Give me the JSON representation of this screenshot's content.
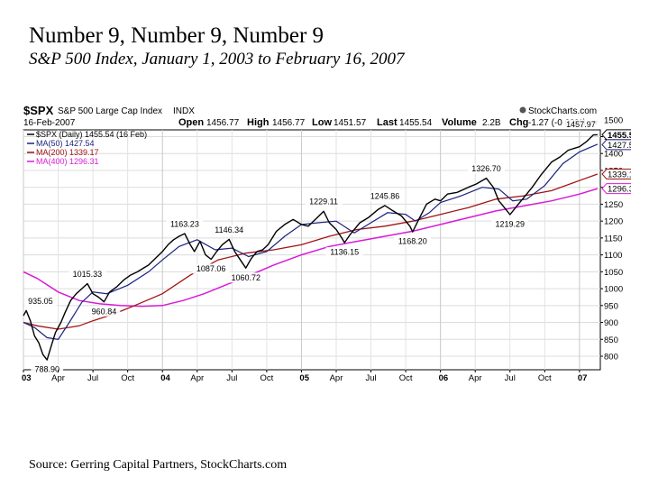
{
  "slide": {
    "title": "Number 9, Number 9, Number 9",
    "subtitle": "S&P 500 Index, January 1, 2003 to February 16, 2007",
    "source": "Source: Gerring Capital Partners, StockCharts.com"
  },
  "chart_data": {
    "type": "line",
    "symbol": "$SPX",
    "name": "S&P 500 Large Cap Index",
    "exchange": "INDX",
    "date": "16-Feb-2007",
    "brand": "StockCharts.com",
    "quote": {
      "open_label": "Open",
      "open": "1456.77",
      "high_label": "High",
      "high": "1456.77",
      "low_label": "Low",
      "low": "1451.57",
      "last_label": "Last",
      "last": "1455.54",
      "volume_label": "Volume",
      "volume": "2.2B",
      "chg_label": "Chg",
      "chg": "-1.27 (-0.09%)"
    },
    "legend": [
      {
        "label": "$SPX (Daily) 1455.54 (16 Feb)",
        "color": "#000000"
      },
      {
        "label": "MA(50) 1427.54",
        "color": "#1a237e"
      },
      {
        "label": "MA(200) 1339.17",
        "color": "#a01414"
      },
      {
        "label": "MA(400) 1296.31",
        "color": "#d81bd8"
      }
    ],
    "ylim": [
      760,
      1470
    ],
    "xlim": [
      2003.0,
      2007.15
    ],
    "y_ticks": [
      800,
      850,
      900,
      950,
      1000,
      1050,
      1100,
      1150,
      1200,
      1250,
      1300,
      1350,
      1400,
      1450,
      1500
    ],
    "x_ticks": [
      {
        "t": 2003.0,
        "label": "03",
        "bold": true
      },
      {
        "t": 2003.25,
        "label": "Apr"
      },
      {
        "t": 2003.5,
        "label": "Jul"
      },
      {
        "t": 2003.75,
        "label": "Oct"
      },
      {
        "t": 2004.0,
        "label": "04",
        "bold": true
      },
      {
        "t": 2004.25,
        "label": "Apr"
      },
      {
        "t": 2004.5,
        "label": "Jul"
      },
      {
        "t": 2004.75,
        "label": "Oct"
      },
      {
        "t": 2005.0,
        "label": "05",
        "bold": true
      },
      {
        "t": 2005.25,
        "label": "Apr"
      },
      {
        "t": 2005.5,
        "label": "Jul"
      },
      {
        "t": 2005.75,
        "label": "Oct"
      },
      {
        "t": 2006.0,
        "label": "06",
        "bold": true
      },
      {
        "t": 2006.25,
        "label": "Apr"
      },
      {
        "t": 2006.5,
        "label": "Jul"
      },
      {
        "t": 2006.75,
        "label": "Oct"
      },
      {
        "t": 2007.0,
        "label": "07",
        "bold": true
      }
    ],
    "price_series": [
      [
        2003.0,
        920
      ],
      [
        2003.02,
        935
      ],
      [
        2003.05,
        905
      ],
      [
        2003.08,
        860
      ],
      [
        2003.11,
        840
      ],
      [
        2003.14,
        805
      ],
      [
        2003.17,
        789
      ],
      [
        2003.2,
        830
      ],
      [
        2003.23,
        870
      ],
      [
        2003.27,
        900
      ],
      [
        2003.3,
        930
      ],
      [
        2003.34,
        965
      ],
      [
        2003.38,
        985
      ],
      [
        2003.42,
        1000
      ],
      [
        2003.46,
        1015
      ],
      [
        2003.5,
        985
      ],
      [
        2003.54,
        975
      ],
      [
        2003.58,
        961
      ],
      [
        2003.62,
        990
      ],
      [
        2003.67,
        1005
      ],
      [
        2003.72,
        1025
      ],
      [
        2003.77,
        1040
      ],
      [
        2003.82,
        1050
      ],
      [
        2003.86,
        1060
      ],
      [
        2003.9,
        1070
      ],
      [
        2003.95,
        1090
      ],
      [
        2004.0,
        1110
      ],
      [
        2004.04,
        1130
      ],
      [
        2004.08,
        1145
      ],
      [
        2004.12,
        1155
      ],
      [
        2004.16,
        1163
      ],
      [
        2004.2,
        1130
      ],
      [
        2004.23,
        1110
      ],
      [
        2004.27,
        1140
      ],
      [
        2004.31,
        1100
      ],
      [
        2004.35,
        1087
      ],
      [
        2004.39,
        1110
      ],
      [
        2004.43,
        1130
      ],
      [
        2004.48,
        1146
      ],
      [
        2004.52,
        1110
      ],
      [
        2004.56,
        1085
      ],
      [
        2004.6,
        1061
      ],
      [
        2004.64,
        1090
      ],
      [
        2004.68,
        1110
      ],
      [
        2004.72,
        1115
      ],
      [
        2004.76,
        1130
      ],
      [
        2004.82,
        1170
      ],
      [
        2004.88,
        1190
      ],
      [
        2004.94,
        1205
      ],
      [
        2005.0,
        1190
      ],
      [
        2005.05,
        1185
      ],
      [
        2005.1,
        1205
      ],
      [
        2005.16,
        1229
      ],
      [
        2005.2,
        1195
      ],
      [
        2005.25,
        1175
      ],
      [
        2005.29,
        1150
      ],
      [
        2005.31,
        1136
      ],
      [
        2005.35,
        1160
      ],
      [
        2005.42,
        1195
      ],
      [
        2005.48,
        1210
      ],
      [
        2005.55,
        1234
      ],
      [
        2005.6,
        1246
      ],
      [
        2005.66,
        1230
      ],
      [
        2005.72,
        1215
      ],
      [
        2005.78,
        1185
      ],
      [
        2005.8,
        1168
      ],
      [
        2005.85,
        1210
      ],
      [
        2005.9,
        1250
      ],
      [
        2005.96,
        1265
      ],
      [
        2006.0,
        1260
      ],
      [
        2006.05,
        1280
      ],
      [
        2006.12,
        1285
      ],
      [
        2006.2,
        1300
      ],
      [
        2006.26,
        1310
      ],
      [
        2006.33,
        1327
      ],
      [
        2006.38,
        1300
      ],
      [
        2006.42,
        1260
      ],
      [
        2006.46,
        1240
      ],
      [
        2006.5,
        1219
      ],
      [
        2006.55,
        1245
      ],
      [
        2006.6,
        1270
      ],
      [
        2006.66,
        1300
      ],
      [
        2006.72,
        1335
      ],
      [
        2006.8,
        1375
      ],
      [
        2006.86,
        1390
      ],
      [
        2006.92,
        1410
      ],
      [
        2007.0,
        1420
      ],
      [
        2007.05,
        1435
      ],
      [
        2007.1,
        1455
      ],
      [
        2007.13,
        1455.5
      ]
    ],
    "ma50": [
      [
        2003.0,
        900
      ],
      [
        2003.08,
        885
      ],
      [
        2003.17,
        855
      ],
      [
        2003.25,
        850
      ],
      [
        2003.33,
        900
      ],
      [
        2003.42,
        960
      ],
      [
        2003.5,
        990
      ],
      [
        2003.6,
        985
      ],
      [
        2003.75,
        1010
      ],
      [
        2003.9,
        1050
      ],
      [
        2004.0,
        1085
      ],
      [
        2004.12,
        1125
      ],
      [
        2004.25,
        1145
      ],
      [
        2004.38,
        1115
      ],
      [
        2004.5,
        1120
      ],
      [
        2004.62,
        1095
      ],
      [
        2004.75,
        1110
      ],
      [
        2004.88,
        1155
      ],
      [
        2005.0,
        1190
      ],
      [
        2005.12,
        1195
      ],
      [
        2005.25,
        1200
      ],
      [
        2005.38,
        1165
      ],
      [
        2005.5,
        1195
      ],
      [
        2005.62,
        1225
      ],
      [
        2005.75,
        1220
      ],
      [
        2005.82,
        1200
      ],
      [
        2005.92,
        1225
      ],
      [
        2006.0,
        1255
      ],
      [
        2006.15,
        1275
      ],
      [
        2006.3,
        1300
      ],
      [
        2006.42,
        1295
      ],
      [
        2006.52,
        1260
      ],
      [
        2006.62,
        1265
      ],
      [
        2006.75,
        1305
      ],
      [
        2006.88,
        1370
      ],
      [
        2007.0,
        1405
      ],
      [
        2007.13,
        1427.5
      ]
    ],
    "ma200": [
      [
        2003.0,
        900
      ],
      [
        2003.1,
        890
      ],
      [
        2003.25,
        880
      ],
      [
        2003.4,
        890
      ],
      [
        2003.5,
        905
      ],
      [
        2003.65,
        925
      ],
      [
        2003.8,
        950
      ],
      [
        2004.0,
        985
      ],
      [
        2004.2,
        1040
      ],
      [
        2004.4,
        1085
      ],
      [
        2004.6,
        1105
      ],
      [
        2004.8,
        1115
      ],
      [
        2005.0,
        1130
      ],
      [
        2005.2,
        1155
      ],
      [
        2005.4,
        1175
      ],
      [
        2005.6,
        1185
      ],
      [
        2005.8,
        1200
      ],
      [
        2006.0,
        1220
      ],
      [
        2006.2,
        1240
      ],
      [
        2006.4,
        1265
      ],
      [
        2006.6,
        1275
      ],
      [
        2006.8,
        1290
      ],
      [
        2007.0,
        1320
      ],
      [
        2007.13,
        1339.2
      ]
    ],
    "ma400": [
      [
        2003.0,
        1050
      ],
      [
        2003.1,
        1030
      ],
      [
        2003.25,
        990
      ],
      [
        2003.4,
        965
      ],
      [
        2003.55,
        955
      ],
      [
        2003.7,
        950
      ],
      [
        2003.85,
        948
      ],
      [
        2004.0,
        950
      ],
      [
        2004.15,
        965
      ],
      [
        2004.3,
        985
      ],
      [
        2004.45,
        1010
      ],
      [
        2004.6,
        1035
      ],
      [
        2004.8,
        1070
      ],
      [
        2005.0,
        1100
      ],
      [
        2005.2,
        1125
      ],
      [
        2005.4,
        1140
      ],
      [
        2005.6,
        1155
      ],
      [
        2005.8,
        1170
      ],
      [
        2006.0,
        1190
      ],
      [
        2006.2,
        1210
      ],
      [
        2006.4,
        1230
      ],
      [
        2006.6,
        1245
      ],
      [
        2006.8,
        1260
      ],
      [
        2007.0,
        1280
      ],
      [
        2007.13,
        1296.3
      ]
    ],
    "annotations": [
      {
        "t": 2003.02,
        "v": 935.05,
        "label": "935.05",
        "pos": "above"
      },
      {
        "t": 2003.17,
        "v": 788.9,
        "label": "788.90",
        "pos": "below"
      },
      {
        "t": 2003.46,
        "v": 1015.33,
        "label": "1015.33",
        "pos": "above"
      },
      {
        "t": 2003.58,
        "v": 960.84,
        "label": "960.84",
        "pos": "below"
      },
      {
        "t": 2004.16,
        "v": 1163.23,
        "label": "1163.23",
        "pos": "above"
      },
      {
        "t": 2004.35,
        "v": 1087.06,
        "label": "1087.06",
        "pos": "below"
      },
      {
        "t": 2004.48,
        "v": 1146.34,
        "label": "1146.34",
        "pos": "above"
      },
      {
        "t": 2004.6,
        "v": 1060.72,
        "label": "1060.72",
        "pos": "below"
      },
      {
        "t": 2005.16,
        "v": 1229.11,
        "label": "1229.11",
        "pos": "above"
      },
      {
        "t": 2005.31,
        "v": 1136.15,
        "label": "1136.15",
        "pos": "below"
      },
      {
        "t": 2005.6,
        "v": 1245.86,
        "label": "1245.86",
        "pos": "above"
      },
      {
        "t": 2005.8,
        "v": 1168.2,
        "label": "1168.20",
        "pos": "below"
      },
      {
        "t": 2006.33,
        "v": 1326.7,
        "label": "1326.70",
        "pos": "above"
      },
      {
        "t": 2006.5,
        "v": 1219.29,
        "label": "1219.29",
        "pos": "below"
      },
      {
        "t": 2007.1,
        "v": 1457.97,
        "label": "1457.97",
        "pos": "above"
      }
    ],
    "last_tags": [
      {
        "v": 1455.54,
        "label": "1455.54",
        "color": "#000000"
      },
      {
        "v": 1427.54,
        "label": "1427.54",
        "color": "#1a237e"
      },
      {
        "v": 1339.17,
        "label": "1339.17",
        "color": "#a01414"
      },
      {
        "v": 1296.31,
        "label": "1296.31",
        "color": "#d81bd8"
      }
    ],
    "grid": true
  }
}
